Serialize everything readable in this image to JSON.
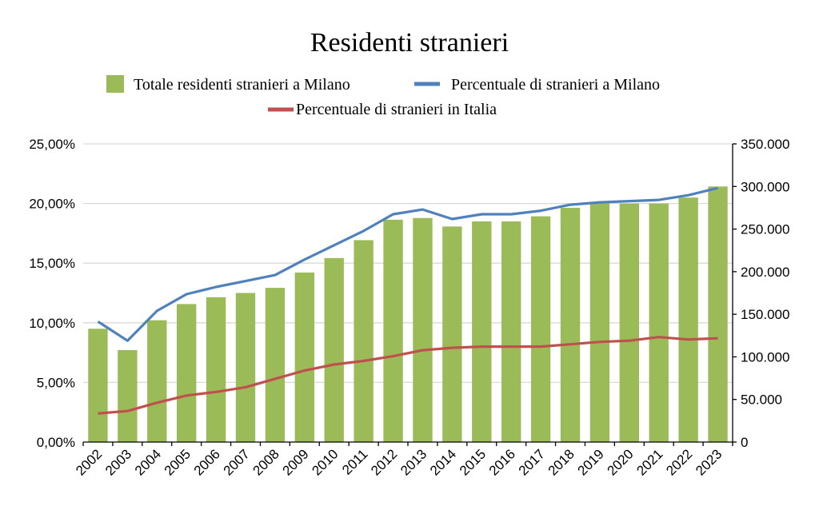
{
  "chart_data": {
    "type": "bar",
    "title": "Residenti stranieri",
    "categories": [
      "2002",
      "2003",
      "2004",
      "2005",
      "2006",
      "2007",
      "2008",
      "2009",
      "2010",
      "2011",
      "2012",
      "2013",
      "2014",
      "2015",
      "2016",
      "2017",
      "2018",
      "2019",
      "2020",
      "2021",
      "2022",
      "2023"
    ],
    "series": [
      {
        "name": "Totale residenti stranieri a Milano",
        "type": "bar",
        "axis": "right",
        "color": "#9bbb59",
        "values": [
          133000,
          108000,
          143000,
          162000,
          170000,
          175000,
          181000,
          199000,
          216000,
          237000,
          261000,
          263000,
          253000,
          259000,
          259000,
          265000,
          275000,
          281000,
          280000,
          280000,
          287000,
          300000
        ]
      },
      {
        "name": "Percentuale di stranieri a Milano",
        "type": "line",
        "axis": "left",
        "color": "#4f81bd",
        "values": [
          10.1,
          8.5,
          11.0,
          12.4,
          13.0,
          13.5,
          14.0,
          15.3,
          16.5,
          17.7,
          19.1,
          19.5,
          18.7,
          19.1,
          19.1,
          19.4,
          19.9,
          20.1,
          20.2,
          20.3,
          20.7,
          21.3
        ]
      },
      {
        "name": "Percentuale di stranieri in Italia",
        "type": "line",
        "axis": "left",
        "color": "#c0504d",
        "values": [
          2.4,
          2.6,
          3.3,
          3.9,
          4.2,
          4.6,
          5.3,
          6.0,
          6.5,
          6.8,
          7.2,
          7.7,
          7.9,
          8.0,
          8.0,
          8.0,
          8.2,
          8.4,
          8.5,
          8.8,
          8.6,
          8.7
        ]
      }
    ],
    "y_left": {
      "min": 0,
      "max": 25,
      "step": 5,
      "tick_labels": [
        "0,00%",
        "5,00%",
        "10,00%",
        "15,00%",
        "20,00%",
        "25,00%"
      ]
    },
    "y_right": {
      "min": 0,
      "max": 350000,
      "step": 50000,
      "tick_labels": [
        "0",
        "50.000",
        "100.000",
        "150.000",
        "200.000",
        "250.000",
        "300.000",
        "350.000"
      ]
    },
    "grid": true,
    "legend_position": "top"
  }
}
